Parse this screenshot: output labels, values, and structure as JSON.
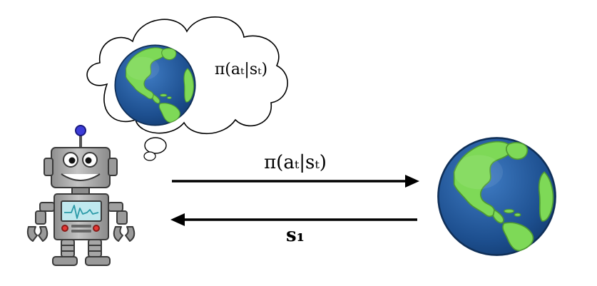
{
  "thought_cloud": {
    "policy_label": "π(aₜ|sₜ)"
  },
  "arrows": {
    "action_label": "π(aₜ|sₜ)",
    "state_label": "s₁"
  },
  "colors": {
    "ocean": "#1d4f8f",
    "land": "#7ed957",
    "robot_body": "#a8a8a8",
    "robot_antenna_tip": "#3c3cd8",
    "robot_screen": "#bfe8ee",
    "robot_screen_wave": "#2b9aa8",
    "robot_buttons": "#e53935"
  },
  "icons": {
    "agent": "robot-icon",
    "environment": "globe-icon",
    "imagined_environment": "globe-icon"
  }
}
